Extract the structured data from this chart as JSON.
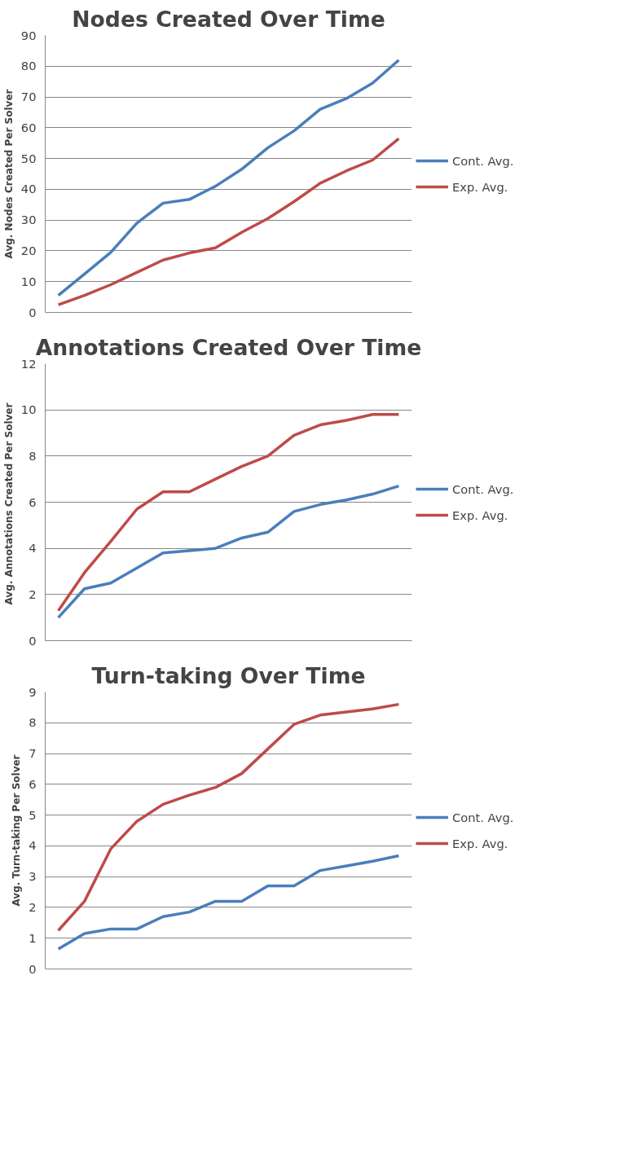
{
  "chart_data": [
    {
      "type": "line",
      "title": "Nodes Created Over Time",
      "ylabel": "Avg. Nodes Created Per Solver",
      "categories": [
        null,
        null,
        null,
        null,
        null,
        null,
        null,
        null,
        null,
        null,
        null,
        null,
        null,
        null
      ],
      "ylim": [
        0,
        90
      ],
      "yticks": [
        0,
        10,
        20,
        30,
        40,
        50,
        60,
        70,
        80,
        90
      ],
      "grid": "y",
      "legend": "right",
      "tick_labels": "y",
      "line_style": "solid",
      "marker": "none",
      "series": [
        {
          "name": "Cont. Avg.",
          "color": "#4a7ebb",
          "values": [
            5.5,
            12.5,
            19.5,
            29,
            35.5,
            36.7,
            41,
            46.5,
            53.5,
            59,
            66,
            69.5,
            74.5,
            82
          ]
        },
        {
          "name": "Exp. Avg.",
          "color": "#be4b48",
          "values": [
            2.5,
            5.5,
            9,
            13,
            17,
            19.3,
            21,
            26,
            30.5,
            36,
            42,
            46,
            49.5,
            56.5
          ]
        }
      ]
    },
    {
      "type": "line",
      "title": "Annotations Created Over Time",
      "ylabel": "Avg. Annotations  Created Per Solver",
      "categories": [
        null,
        null,
        null,
        null,
        null,
        null,
        null,
        null,
        null,
        null,
        null,
        null,
        null,
        null
      ],
      "ylim": [
        0,
        12
      ],
      "yticks": [
        0,
        2,
        4,
        6,
        8,
        10,
        12
      ],
      "grid": "y",
      "legend": "right",
      "tick_labels": "y",
      "line_style": "solid",
      "marker": "none",
      "series": [
        {
          "name": "Cont. Avg.",
          "color": "#4a7ebb",
          "values": [
            1.0,
            2.25,
            2.5,
            3.15,
            3.8,
            3.9,
            4.0,
            4.45,
            4.7,
            5.6,
            5.9,
            6.1,
            6.35,
            6.7
          ]
        },
        {
          "name": "Exp. Avg.",
          "color": "#be4b48",
          "values": [
            1.3,
            2.95,
            4.3,
            5.7,
            6.45,
            6.45,
            7.0,
            7.55,
            8.0,
            8.9,
            9.35,
            9.55,
            9.8,
            9.8
          ]
        }
      ]
    },
    {
      "type": "line",
      "title": "Turn-taking Over Time",
      "ylabel": "Avg. Turn-taking Per Solver",
      "categories": [
        null,
        null,
        null,
        null,
        null,
        null,
        null,
        null,
        null,
        null,
        null,
        null,
        null,
        null
      ],
      "ylim": [
        0,
        9
      ],
      "yticks": [
        0,
        1,
        2,
        3,
        4,
        5,
        6,
        7,
        8,
        9
      ],
      "grid": "y",
      "legend": "right",
      "tick_labels": "y",
      "line_style": "solid",
      "marker": "none",
      "series": [
        {
          "name": "Cont. Avg.",
          "color": "#4a7ebb",
          "values": [
            0.65,
            1.15,
            1.3,
            1.3,
            1.7,
            1.85,
            2.2,
            2.2,
            2.7,
            2.7,
            3.2,
            3.35,
            3.5,
            3.68
          ]
        },
        {
          "name": "Exp. Avg.",
          "color": "#be4b48",
          "values": [
            1.25,
            2.2,
            3.9,
            4.8,
            5.35,
            5.65,
            5.9,
            6.35,
            7.15,
            7.95,
            8.25,
            8.35,
            8.45,
            8.6
          ]
        }
      ]
    }
  ]
}
